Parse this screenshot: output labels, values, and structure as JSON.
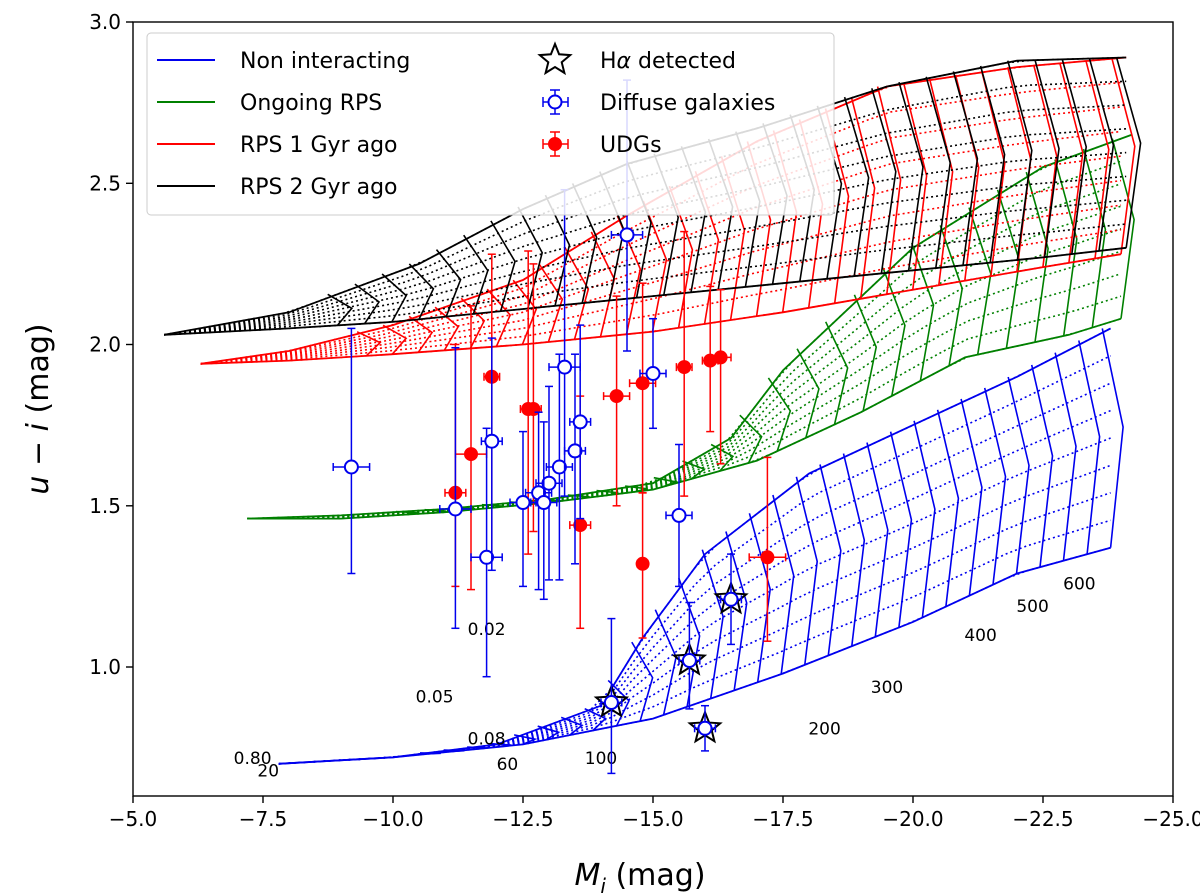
{
  "chart_data": {
    "type": "scatter",
    "xlabel_main": "M",
    "xlabel_sub": "i",
    "xlabel_unit": "(mag)",
    "ylabel_a": "u",
    "ylabel_b": "i",
    "ylabel_unit": "(mag)",
    "xlim": [
      -5,
      -25
    ],
    "ylim": [
      0.6,
      3.0
    ],
    "x_ticks": [
      -5.0,
      -7.5,
      -10.0,
      -12.5,
      -15.0,
      -17.5,
      -20.0,
      -22.5,
      -25.0
    ],
    "x_tick_labels": [
      "−5.0",
      "−7.5",
      "−10.0",
      "−12.5",
      "−15.0",
      "−17.5",
      "−20.0",
      "−22.5",
      "−25.0"
    ],
    "y_ticks": [
      1.0,
      1.5,
      2.0,
      2.5,
      3.0
    ],
    "y_tick_labels": [
      "1.0",
      "1.5",
      "2.0",
      "2.5",
      "3.0"
    ],
    "legend": {
      "nonint": "Non interacting",
      "ongoing": "Ongoing RPS",
      "rps1": "RPS 1 Gyr ago",
      "rps2": "RPS 2 Gyr ago",
      "ha_prefix": "H",
      "ha_alpha": "α",
      "ha_suffix": " detected",
      "diffuse": "Diffuse galaxies",
      "udg": "UDGs"
    },
    "colors": {
      "nonint": "#0000ee",
      "ongoing": "#008000",
      "rps1": "#ff0000",
      "rps2": "#000000",
      "faded": "#c8c8c8"
    },
    "model_grids": [
      {
        "name": "Non interacting",
        "color": "#0000ee",
        "base": [
          [
            -7.8,
            0.7
          ],
          [
            -10,
            0.72
          ],
          [
            -12.5,
            0.76
          ],
          [
            -15,
            0.84
          ],
          [
            -17.5,
            0.98
          ],
          [
            -20,
            1.14
          ],
          [
            -22,
            1.29
          ],
          [
            -23.8,
            1.37
          ]
        ],
        "top": [
          [
            -7.8,
            0.7
          ],
          [
            -10,
            0.72
          ],
          [
            -12,
            0.76
          ],
          [
            -14,
            0.88
          ],
          [
            -14.8,
            1.09
          ],
          [
            -16,
            1.35
          ],
          [
            -18,
            1.6
          ],
          [
            -20,
            1.75
          ],
          [
            -22,
            1.9
          ],
          [
            -23.8,
            2.05
          ]
        ],
        "n": 30
      },
      {
        "name": "Ongoing RPS",
        "color": "#008000",
        "base": [
          [
            -7.2,
            1.46
          ],
          [
            -9,
            1.46
          ],
          [
            -11,
            1.48
          ],
          [
            -13,
            1.51
          ],
          [
            -15,
            1.55
          ],
          [
            -17,
            1.64
          ],
          [
            -19,
            1.79
          ],
          [
            -21,
            1.96
          ],
          [
            -23,
            2.03
          ],
          [
            -24,
            2.08
          ]
        ],
        "top": [
          [
            -7.2,
            1.46
          ],
          [
            -9,
            1.47
          ],
          [
            -11,
            1.49
          ],
          [
            -13,
            1.52
          ],
          [
            -15,
            1.57
          ],
          [
            -16.5,
            1.71
          ],
          [
            -17.5,
            1.92
          ],
          [
            -20,
            2.3
          ],
          [
            -22.5,
            2.55
          ],
          [
            -24.2,
            2.65
          ]
        ],
        "n": 26
      },
      {
        "name": "RPS 1 Gyr ago",
        "color": "#ff0000",
        "base": [
          [
            -6.3,
            1.94
          ],
          [
            -8,
            1.95
          ],
          [
            -10,
            1.97
          ],
          [
            -12.5,
            2.0
          ],
          [
            -15,
            2.04
          ],
          [
            -17.5,
            2.1
          ],
          [
            -20,
            2.17
          ],
          [
            -22.5,
            2.24
          ],
          [
            -24,
            2.28
          ]
        ],
        "top": [
          [
            -6.3,
            1.94
          ],
          [
            -8,
            1.98
          ],
          [
            -10,
            2.06
          ],
          [
            -12.5,
            2.2
          ],
          [
            -14.5,
            2.4
          ],
          [
            -17,
            2.63
          ],
          [
            -19.5,
            2.8
          ],
          [
            -22,
            2.86
          ],
          [
            -24.1,
            2.89
          ]
        ],
        "n": 30
      },
      {
        "name": "RPS 2 Gyr ago",
        "color": "#000000",
        "base": [
          [
            -5.6,
            2.03
          ],
          [
            -8,
            2.05
          ],
          [
            -10,
            2.07
          ],
          [
            -12.5,
            2.11
          ],
          [
            -15,
            2.15
          ],
          [
            -17.5,
            2.19
          ],
          [
            -20,
            2.23
          ],
          [
            -22.5,
            2.27
          ],
          [
            -24.1,
            2.3
          ]
        ],
        "top": [
          [
            -5.6,
            2.03
          ],
          [
            -8,
            2.1
          ],
          [
            -10.5,
            2.25
          ],
          [
            -12.5,
            2.42
          ],
          [
            -14.5,
            2.56
          ],
          [
            -17,
            2.67
          ],
          [
            -19.5,
            2.8
          ],
          [
            -22,
            2.88
          ],
          [
            -24.1,
            2.89
          ]
        ],
        "n": 30
      }
    ],
    "age_labels": [
      {
        "text": "0.80",
        "x": -7.3,
        "y": 0.7
      },
      {
        "text": "20",
        "x": -7.6,
        "y": 0.66
      },
      {
        "text": "0.08",
        "x": -11.8,
        "y": 0.76
      },
      {
        "text": "60",
        "x": -12.2,
        "y": 0.68
      },
      {
        "text": "100",
        "x": -14.0,
        "y": 0.7
      },
      {
        "text": "0.05",
        "x": -10.8,
        "y": 0.89
      },
      {
        "text": "0.02",
        "x": -11.8,
        "y": 1.1
      },
      {
        "text": "200",
        "x": -18.3,
        "y": 0.79
      },
      {
        "text": "300",
        "x": -19.5,
        "y": 0.92
      },
      {
        "text": "400",
        "x": -21.3,
        "y": 1.08
      },
      {
        "text": "500",
        "x": -22.3,
        "y": 1.17
      },
      {
        "text": "600",
        "x": -23.2,
        "y": 1.24
      }
    ],
    "diffuse_galaxies": [
      {
        "x": -9.2,
        "y": 1.62,
        "xe": 0.35,
        "ylo": 0.33,
        "yhi": 0.43
      },
      {
        "x": -11.2,
        "y": 1.49,
        "xe": 0.3,
        "ylo": 0.37,
        "yhi": 0.5
      },
      {
        "x": -11.8,
        "y": 1.34,
        "xe": 0.3,
        "ylo": 0.37,
        "yhi": 0.4
      },
      {
        "x": -11.9,
        "y": 1.7,
        "xe": 0.2,
        "ylo": 0.4,
        "yhi": 0.32
      },
      {
        "x": -12.5,
        "y": 1.51,
        "xe": 0.25,
        "ylo": 0.26,
        "yhi": 0.22
      },
      {
        "x": -12.8,
        "y": 1.54,
        "xe": 0.25,
        "ylo": 0.3,
        "yhi": 0.25
      },
      {
        "x": -13.0,
        "y": 1.57,
        "xe": 0.25,
        "ylo": 0.3,
        "yhi": 0.3
      },
      {
        "x": -12.9,
        "y": 1.51,
        "xe": 0.25,
        "ylo": 0.3,
        "yhi": 0.25
      },
      {
        "x": -13.2,
        "y": 1.62,
        "xe": 0.25,
        "ylo": 0.35,
        "yhi": 0.35
      },
      {
        "x": -13.3,
        "y": 1.93,
        "xe": 0.3,
        "ylo": 0.4,
        "yhi": 0.55
      },
      {
        "x": -13.5,
        "y": 1.67,
        "xe": 0.2,
        "ylo": 0.35,
        "yhi": 0.3
      },
      {
        "x": -13.6,
        "y": 1.76,
        "xe": 0.2,
        "ylo": 0.3,
        "yhi": 0.3
      },
      {
        "x": -14.5,
        "y": 2.34,
        "xe": 0.3,
        "ylo": 0.36,
        "yhi": 0.48
      },
      {
        "x": -15.0,
        "y": 1.91,
        "xe": 0.25,
        "ylo": 0.17,
        "yhi": 0.17
      },
      {
        "x": -15.5,
        "y": 1.47,
        "xe": 0.25,
        "ylo": 0.22,
        "yhi": 0.22
      },
      {
        "x": -14.2,
        "y": 0.89,
        "xe": 0.2,
        "ylo": 0.22,
        "yhi": 0.26
      },
      {
        "x": -15.7,
        "y": 1.02,
        "xe": 0.2,
        "ylo": 0.15,
        "yhi": 0.18
      },
      {
        "x": -16.0,
        "y": 0.81,
        "xe": 0.2,
        "ylo": 0.07,
        "yhi": 0.07
      },
      {
        "x": -16.5,
        "y": 1.21,
        "xe": 0.2,
        "ylo": 0.14,
        "yhi": 0.14
      }
    ],
    "halpha_detected": [
      {
        "x": -14.2,
        "y": 0.89
      },
      {
        "x": -15.7,
        "y": 1.02
      },
      {
        "x": -16.0,
        "y": 0.81
      },
      {
        "x": -16.5,
        "y": 1.21
      }
    ],
    "udgs": [
      {
        "x": -11.2,
        "y": 1.54,
        "xe": 0.2,
        "ylo": 0.29,
        "yhi": 0.46
      },
      {
        "x": -11.5,
        "y": 1.66,
        "xe": 0.3,
        "ylo": 0.42,
        "yhi": 0.46
      },
      {
        "x": -11.9,
        "y": 1.9,
        "xe": 0.15,
        "ylo": 0.56,
        "yhi": 0.38
      },
      {
        "x": -12.6,
        "y": 1.8,
        "xe": 0.15,
        "ylo": 0.45,
        "yhi": 0.49
      },
      {
        "x": -12.7,
        "y": 1.8,
        "xe": 0.15,
        "ylo": 0.38,
        "yhi": 0.45
      },
      {
        "x": -13.6,
        "y": 1.44,
        "xe": 0.2,
        "ylo": 0.32,
        "yhi": 0.4
      },
      {
        "x": -14.3,
        "y": 1.84,
        "xe": 0.25,
        "ylo": 0.34,
        "yhi": 0.31
      },
      {
        "x": -14.8,
        "y": 1.88,
        "xe": 0.25,
        "ylo": 0.34,
        "yhi": 0.31
      },
      {
        "x": -14.8,
        "y": 1.32,
        "xe": 0.1,
        "ylo": 0.23,
        "yhi": 0.22
      },
      {
        "x": -15.6,
        "y": 1.93,
        "xe": 0.15,
        "ylo": 0.4,
        "yhi": 0.42
      },
      {
        "x": -16.1,
        "y": 1.95,
        "xe": 0.15,
        "ylo": 0.22,
        "yhi": 0.23
      },
      {
        "x": -16.3,
        "y": 1.96,
        "xe": 0.2,
        "ylo": 0.33,
        "yhi": 0.21
      },
      {
        "x": -17.2,
        "y": 1.34,
        "xe": 0.35,
        "ylo": 0.26,
        "yhi": 0.31
      }
    ]
  }
}
